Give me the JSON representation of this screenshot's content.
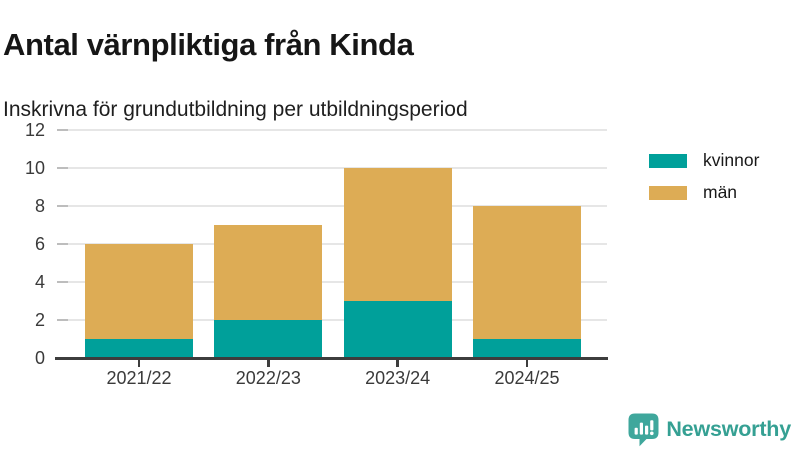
{
  "header": {
    "title": "Antal värnpliktiga från Kinda",
    "subtitle": "Inskrivna för grundutbildning per utbildningsperiod"
  },
  "chart_data": {
    "type": "bar",
    "stacked": true,
    "title": "Antal värnpliktiga från Kinda",
    "subtitle": "Inskrivna för grundutbildning per utbildningsperiod",
    "categories": [
      "2021/22",
      "2022/23",
      "2023/24",
      "2024/25"
    ],
    "series": [
      {
        "name": "kvinnor",
        "color": "#00a09a",
        "values": [
          1,
          2,
          3,
          1
        ]
      },
      {
        "name": "män",
        "color": "#ddac55",
        "values": [
          5,
          5,
          7,
          7
        ]
      }
    ],
    "stack_totals": [
      6,
      7,
      10,
      8
    ],
    "xlabel": "",
    "ylabel": "",
    "ylim": [
      0,
      12
    ],
    "yticks": [
      0,
      2,
      4,
      6,
      8,
      10,
      12
    ],
    "grid": "horizontal",
    "legend_position": "right"
  },
  "colors": {
    "axis": "#3d3d3d",
    "gridline": "#e6e6e6",
    "tick_label": "#3a3a3a",
    "background": "#ffffff"
  },
  "footer": {
    "brand": "Newsworthy",
    "brand_color": "#35a093",
    "logo_icon": "bar-chart-speech-bubble-icon",
    "logo_icon_color": "#3fa79c"
  }
}
